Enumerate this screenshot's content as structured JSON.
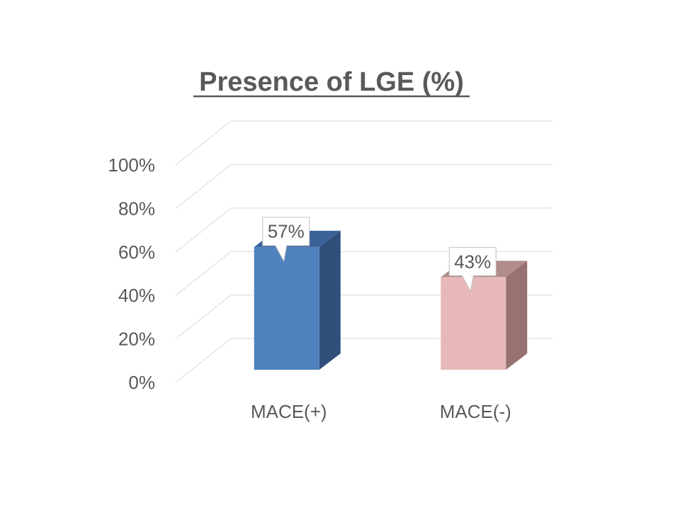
{
  "chart_data": {
    "type": "bar",
    "title": "Presence of LGE (%)",
    "categories": [
      "MACE(+)",
      "MACE(-)"
    ],
    "values": [
      57,
      43
    ],
    "data_labels": [
      "57%",
      "43%"
    ],
    "y_ticks": [
      "0%",
      "20%",
      "40%",
      "60%",
      "80%",
      "100%"
    ],
    "ylim": [
      0,
      100
    ],
    "grid": true,
    "legend": "none",
    "style": "3d-column",
    "colors": {
      "bars": [
        "#4F81BD",
        "#E6B9B8"
      ],
      "bar_sides": [
        "#2F4F7A",
        "#967272"
      ],
      "bar_tops": [
        "#3B6199",
        "#B08C8B"
      ],
      "title": "#595959",
      "ticks": "#595959",
      "grid": "#D9D9D9",
      "callout_border": "#BFBFBF"
    }
  }
}
